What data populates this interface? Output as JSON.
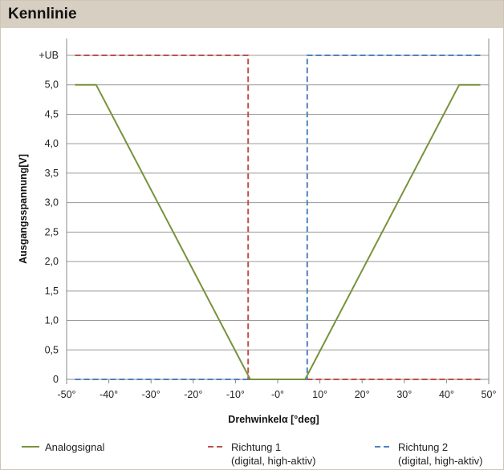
{
  "header": {
    "title": "Kennlinie"
  },
  "chart_data": {
    "type": "line",
    "xlabel": "Drehwinkelα  [°deg]",
    "ylabel": "Ausgangsspannung[V]",
    "xlim": [
      -50,
      50
    ],
    "ylim": [
      0,
      5.5
    ],
    "x_ticks": [
      {
        "value": -50,
        "label": "-50°"
      },
      {
        "value": -40,
        "label": "-40°"
      },
      {
        "value": -30,
        "label": "-30°"
      },
      {
        "value": -20,
        "label": "-20°"
      },
      {
        "value": -10,
        "label": "-10°"
      },
      {
        "value": 0,
        "label": "-0°"
      },
      {
        "value": 10,
        "label": "10°"
      },
      {
        "value": 20,
        "label": "20°"
      },
      {
        "value": 30,
        "label": "30°"
      },
      {
        "value": 40,
        "label": "40°"
      },
      {
        "value": 50,
        "label": "50°"
      }
    ],
    "y_ticks": [
      {
        "value": 0,
        "label": "0"
      },
      {
        "value": 0.5,
        "label": "0,5"
      },
      {
        "value": 1.0,
        "label": "1,0"
      },
      {
        "value": 1.5,
        "label": "1,5"
      },
      {
        "value": 2.0,
        "label": "2,0"
      },
      {
        "value": 2.5,
        "label": "2,5"
      },
      {
        "value": 3.0,
        "label": "3,0"
      },
      {
        "value": 3.5,
        "label": "3,5"
      },
      {
        "value": 4.0,
        "label": "4,0"
      },
      {
        "value": 4.5,
        "label": "4,5"
      },
      {
        "value": 5.0,
        "label": "5,0"
      },
      {
        "value": 5.5,
        "label": "+UB"
      }
    ],
    "grid": {
      "horizontal": true,
      "vertical": false
    },
    "legend_position": "bottom",
    "series": [
      {
        "name": "Analogsignal",
        "color": "#77933c",
        "dash": "solid",
        "points": [
          [
            -48,
            5.0
          ],
          [
            -43,
            5.0
          ],
          [
            -6.5,
            0
          ],
          [
            6.5,
            0
          ],
          [
            43,
            5.0
          ],
          [
            48,
            5.0
          ]
        ]
      },
      {
        "name": "Richtung 1",
        "name2": "(digital, high-aktiv)",
        "color": "#c0504d",
        "dash": "dashed",
        "points": [
          [
            -48,
            5.5
          ],
          [
            -7,
            5.5
          ],
          [
            -7,
            0
          ],
          [
            48,
            0
          ]
        ]
      },
      {
        "name": "Richtung 2",
        "name2": "(digital, high-aktiv)",
        "color": "#4f81bd",
        "dash": "dashed",
        "points": [
          [
            -48,
            0
          ],
          [
            7,
            0
          ],
          [
            7,
            5.5
          ],
          [
            48,
            5.5
          ]
        ]
      }
    ]
  }
}
